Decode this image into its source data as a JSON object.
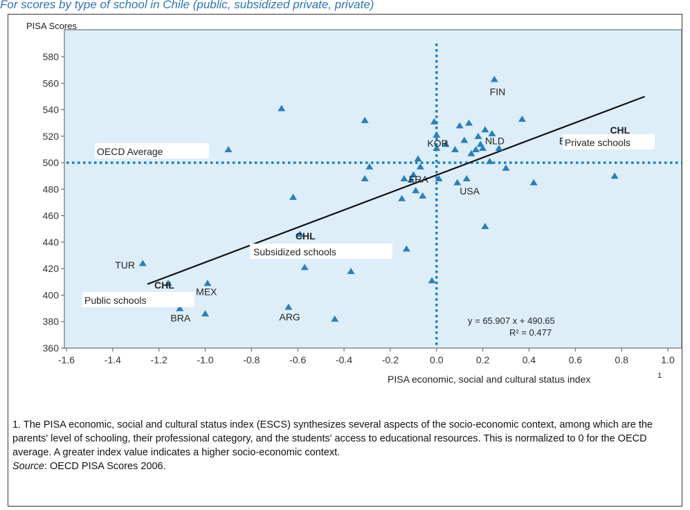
{
  "page": {
    "heading": "For scores by type of school in Chile (public, subsidized private, private)",
    "footnote": "1.   The PISA economic, social and cultural status index (ESCS) synthesizes several aspects of the socio-economic context, among which are the parents' level of schooling, their professional category, and the students' access to educational resources.  This is normalized to 0 for the OECD average.  A greater index value indicates a higher socio-economic context.",
    "source_label": "Source",
    "source_text": ": OECD PISA Scores 2006."
  },
  "colors": {
    "plot_bg": "#ddeef8",
    "marker": "#2a7fb8",
    "reference_line": "#1a7fc2",
    "trend_line": "#111111"
  },
  "chart_data": {
    "type": "scatter",
    "title": "",
    "ylabel": "PISA Scores",
    "xlabel": "PISA economic, social and cultural status index",
    "xlabel_superscript": "1",
    "xlim": [
      -1.6,
      1.0
    ],
    "ylim": [
      360,
      590
    ],
    "xticks": [
      "-1.6",
      "-1.4",
      "-1.2",
      "-1.0",
      "-0.8",
      "-0.6",
      "-0.4",
      "-0.2",
      "0.0",
      "0.2",
      "0.4",
      "0.6",
      "0.8",
      "1.0"
    ],
    "yticks": [
      "360",
      "380",
      "400",
      "420",
      "440",
      "460",
      "480",
      "500",
      "520",
      "540",
      "560",
      "580"
    ],
    "grid": false,
    "reference_lines": {
      "oecd_average_score": 500,
      "oecd_average_index": 0.0
    },
    "trendline": {
      "slope": 65.907,
      "intercept": 490.65,
      "x_range": [
        -1.25,
        0.9
      ]
    },
    "equation_text": "y = 65.907 x + 490.65",
    "r2_text": "R² = 0.477",
    "annotations": {
      "oecd_average": "OECD Average",
      "private": "Private schools",
      "subsidized": "Subsidized schools",
      "public": "Public schools"
    },
    "points": [
      {
        "x": -1.27,
        "y": 424,
        "label": "TUR"
      },
      {
        "x": -1.16,
        "y": 409,
        "label": "CHL"
      },
      {
        "x": -1.11,
        "y": 390,
        "label": "BRA"
      },
      {
        "x": -0.99,
        "y": 409,
        "label": "MEX"
      },
      {
        "x": -1.0,
        "y": 386,
        "label": ""
      },
      {
        "x": -0.9,
        "y": 510,
        "label": ""
      },
      {
        "x": -0.67,
        "y": 541,
        "label": ""
      },
      {
        "x": -0.64,
        "y": 391,
        "label": "ARG"
      },
      {
        "x": -0.62,
        "y": 474,
        "label": ""
      },
      {
        "x": -0.59,
        "y": 446,
        "label": "CHL"
      },
      {
        "x": -0.57,
        "y": 421,
        "label": ""
      },
      {
        "x": -0.44,
        "y": 382,
        "label": ""
      },
      {
        "x": -0.37,
        "y": 418,
        "label": ""
      },
      {
        "x": -0.31,
        "y": 532,
        "label": ""
      },
      {
        "x": -0.31,
        "y": 488,
        "label": ""
      },
      {
        "x": -0.29,
        "y": 497,
        "label": ""
      },
      {
        "x": -0.15,
        "y": 473,
        "label": ""
      },
      {
        "x": -0.14,
        "y": 488,
        "label": ""
      },
      {
        "x": -0.13,
        "y": 435,
        "label": ""
      },
      {
        "x": -0.11,
        "y": 487,
        "label": "FRA"
      },
      {
        "x": -0.1,
        "y": 491,
        "label": ""
      },
      {
        "x": -0.09,
        "y": 479,
        "label": ""
      },
      {
        "x": -0.08,
        "y": 503,
        "label": ""
      },
      {
        "x": -0.07,
        "y": 497,
        "label": ""
      },
      {
        "x": -0.06,
        "y": 475,
        "label": ""
      },
      {
        "x": -0.02,
        "y": 411,
        "label": ""
      },
      {
        "x": -0.01,
        "y": 531,
        "label": ""
      },
      {
        "x": 0.0,
        "y": 521,
        "label": ""
      },
      {
        "x": 0.0,
        "y": 511,
        "label": "KOR"
      },
      {
        "x": 0.01,
        "y": 488,
        "label": ""
      },
      {
        "x": 0.04,
        "y": 514,
        "label": ""
      },
      {
        "x": 0.08,
        "y": 510,
        "label": ""
      },
      {
        "x": 0.09,
        "y": 485,
        "label": "USA"
      },
      {
        "x": 0.1,
        "y": 528,
        "label": ""
      },
      {
        "x": 0.12,
        "y": 517,
        "label": ""
      },
      {
        "x": 0.13,
        "y": 488,
        "label": ""
      },
      {
        "x": 0.14,
        "y": 530,
        "label": ""
      },
      {
        "x": 0.15,
        "y": 507,
        "label": ""
      },
      {
        "x": 0.17,
        "y": 510,
        "label": ""
      },
      {
        "x": 0.18,
        "y": 520,
        "label": ""
      },
      {
        "x": 0.19,
        "y": 514,
        "label": ""
      },
      {
        "x": 0.2,
        "y": 511,
        "label": "NLD"
      },
      {
        "x": 0.21,
        "y": 525,
        "label": ""
      },
      {
        "x": 0.21,
        "y": 452,
        "label": ""
      },
      {
        "x": 0.23,
        "y": 501,
        "label": ""
      },
      {
        "x": 0.24,
        "y": 522,
        "label": ""
      },
      {
        "x": 0.25,
        "y": 563,
        "label": "FIN"
      },
      {
        "x": 0.27,
        "y": 511,
        "label": ""
      },
      {
        "x": 0.3,
        "y": 496,
        "label": ""
      },
      {
        "x": 0.37,
        "y": 533,
        "label": ""
      },
      {
        "x": 0.42,
        "y": 485,
        "label": ""
      },
      {
        "x": 0.77,
        "y": 490,
        "label": ""
      }
    ],
    "point_labels": [
      {
        "text": "TUR",
        "x": -1.39,
        "y": 420
      },
      {
        "text": "CHL",
        "x": -1.22,
        "y": 405,
        "bold": true
      },
      {
        "text": "BRA",
        "x": -1.15,
        "y": 380
      },
      {
        "text": "MEX",
        "x": -1.04,
        "y": 400
      },
      {
        "text": "ARG",
        "x": -0.68,
        "y": 381
      },
      {
        "text": "CHL",
        "x": -0.61,
        "y": 442,
        "bold": true
      },
      {
        "text": "FRA",
        "x": -0.12,
        "y": 485
      },
      {
        "text": "KOR",
        "x": -0.04,
        "y": 512
      },
      {
        "text": "USA",
        "x": 0.1,
        "y": 476
      },
      {
        "text": "NLD",
        "x": 0.21,
        "y": 514
      },
      {
        "text": "FIN",
        "x": 0.23,
        "y": 551
      },
      {
        "text": "E",
        "x": 0.53,
        "y": 514
      },
      {
        "text": "CHL",
        "x": 0.75,
        "y": 522,
        "bold": true
      }
    ]
  }
}
